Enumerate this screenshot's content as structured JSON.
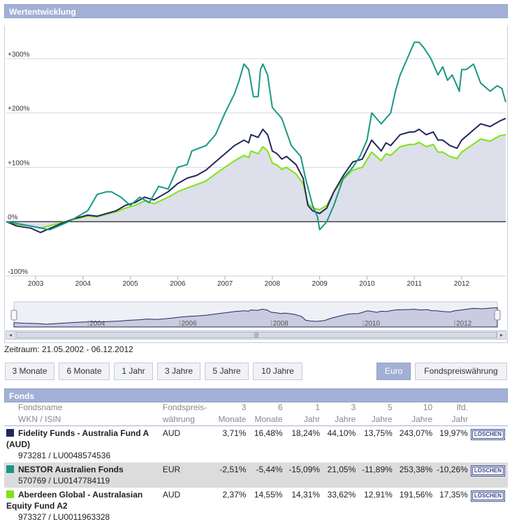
{
  "header": {
    "title": "Wertentwicklung"
  },
  "chart_data": {
    "type": "line",
    "title": "Wertentwicklung",
    "ylim": [
      -100,
      350
    ],
    "y_ticks": [
      -100,
      0,
      100,
      200,
      300
    ],
    "y_tick_labels": [
      "-100%",
      "0%",
      "+100%",
      "+200%",
      "+300%"
    ],
    "xlim": [
      2002.38,
      2012.93
    ],
    "x_ticks": [
      2003,
      2004,
      2005,
      2006,
      2007,
      2008,
      2009,
      2010,
      2011,
      2012
    ],
    "x_tick_labels": [
      "2003",
      "2004",
      "2005",
      "2006",
      "2007",
      "2008",
      "2009",
      "2010",
      "2011",
      "2012"
    ],
    "series": [
      {
        "name": "Fidelity Funds - Australia Fund A (AUD)",
        "color": "#22275e",
        "x": [
          2002.38,
          2002.6,
          2002.9,
          2003.1,
          2003.5,
          2003.8,
          2004.1,
          2004.3,
          2004.7,
          2004.9,
          2005.1,
          2005.3,
          2005.5,
          2005.8,
          2006.0,
          2006.2,
          2006.4,
          2006.6,
          2006.8,
          2007.0,
          2007.2,
          2007.4,
          2007.5,
          2007.55,
          2007.7,
          2007.8,
          2007.9,
          2008.0,
          2008.1,
          2008.2,
          2008.3,
          2008.5,
          2008.65,
          2008.75,
          2008.85,
          2009.0,
          2009.15,
          2009.3,
          2009.5,
          2009.7,
          2009.9,
          2010.1,
          2010.3,
          2010.4,
          2010.5,
          2010.7,
          2010.9,
          2011.0,
          2011.1,
          2011.25,
          2011.4,
          2011.5,
          2011.6,
          2011.75,
          2011.9,
          2012.0,
          2012.2,
          2012.4,
          2012.6,
          2012.8,
          2012.93
        ],
        "values": [
          0,
          -8,
          -12,
          -20,
          -5,
          5,
          12,
          10,
          20,
          30,
          35,
          45,
          40,
          55,
          70,
          80,
          85,
          95,
          110,
          125,
          140,
          150,
          145,
          160,
          155,
          170,
          160,
          130,
          125,
          115,
          120,
          105,
          80,
          30,
          20,
          15,
          25,
          55,
          85,
          110,
          115,
          150,
          130,
          145,
          140,
          160,
          165,
          165,
          170,
          160,
          165,
          150,
          150,
          140,
          135,
          150,
          165,
          180,
          175,
          185,
          190
        ]
      },
      {
        "name": "NESTOR Australien Fonds",
        "color": "#179884",
        "x": [
          2002.38,
          2002.7,
          2003.0,
          2003.3,
          2003.7,
          2003.9,
          2004.1,
          2004.3,
          2004.5,
          2004.6,
          2004.8,
          2005.0,
          2005.2,
          2005.4,
          2005.6,
          2005.8,
          2006.0,
          2006.2,
          2006.3,
          2006.6,
          2006.8,
          2007.0,
          2007.2,
          2007.3,
          2007.4,
          2007.5,
          2007.6,
          2007.7,
          2007.75,
          2007.8,
          2007.9,
          2008.0,
          2008.2,
          2008.4,
          2008.6,
          2008.7,
          2008.85,
          2008.95,
          2009.0,
          2009.15,
          2009.3,
          2009.5,
          2009.7,
          2009.85,
          2010.0,
          2010.1,
          2010.3,
          2010.5,
          2010.6,
          2010.7,
          2010.9,
          2011.0,
          2011.1,
          2011.2,
          2011.35,
          2011.5,
          2011.6,
          2011.7,
          2011.8,
          2011.95,
          2012.0,
          2012.1,
          2012.25,
          2012.4,
          2012.6,
          2012.75,
          2012.85,
          2012.93
        ],
        "values": [
          0,
          -5,
          -10,
          -15,
          0,
          10,
          20,
          50,
          55,
          55,
          45,
          30,
          45,
          35,
          65,
          60,
          100,
          105,
          130,
          140,
          160,
          200,
          235,
          260,
          290,
          280,
          230,
          230,
          280,
          290,
          270,
          210,
          190,
          140,
          120,
          80,
          30,
          10,
          -15,
          0,
          30,
          80,
          100,
          120,
          150,
          200,
          180,
          200,
          240,
          270,
          310,
          330,
          330,
          320,
          300,
          270,
          285,
          260,
          270,
          240,
          280,
          280,
          290,
          255,
          240,
          250,
          245,
          220
        ]
      },
      {
        "name": "Aberdeen Global - Australasian Equity Fund A2",
        "color": "#7ee314",
        "area": true,
        "x": [
          2002.38,
          2002.6,
          2002.9,
          2003.1,
          2003.5,
          2003.8,
          2004.1,
          2004.3,
          2004.7,
          2004.9,
          2005.1,
          2005.3,
          2005.5,
          2005.8,
          2006.0,
          2006.2,
          2006.4,
          2006.6,
          2006.8,
          2007.0,
          2007.2,
          2007.4,
          2007.5,
          2007.55,
          2007.7,
          2007.8,
          2007.9,
          2008.0,
          2008.1,
          2008.2,
          2008.3,
          2008.5,
          2008.65,
          2008.75,
          2008.85,
          2009.0,
          2009.15,
          2009.3,
          2009.5,
          2009.7,
          2009.9,
          2010.1,
          2010.3,
          2010.4,
          2010.5,
          2010.7,
          2010.9,
          2011.0,
          2011.1,
          2011.25,
          2011.4,
          2011.5,
          2011.6,
          2011.75,
          2011.9,
          2012.0,
          2012.2,
          2012.4,
          2012.6,
          2012.8,
          2012.93
        ],
        "values": [
          0,
          -5,
          -8,
          -12,
          -3,
          4,
          10,
          9,
          18,
          25,
          30,
          38,
          33,
          45,
          55,
          62,
          68,
          75,
          88,
          100,
          112,
          122,
          118,
          130,
          125,
          138,
          130,
          108,
          104,
          96,
          100,
          88,
          70,
          35,
          25,
          22,
          30,
          55,
          78,
          95,
          100,
          128,
          112,
          125,
          122,
          138,
          142,
          142,
          146,
          138,
          142,
          128,
          128,
          120,
          116,
          128,
          140,
          152,
          148,
          158,
          160
        ]
      }
    ],
    "navigator": {
      "x_tick_labels": [
        "2004",
        "2006",
        "2008",
        "2010",
        "2012"
      ],
      "x_ticks": [
        2004,
        2006,
        2008,
        2010,
        2012
      ]
    }
  },
  "zeitraum": "Zeitraum: 21.05.2002 - 06.12.2012",
  "range_buttons": [
    {
      "label": "3 Monate"
    },
    {
      "label": "6 Monate"
    },
    {
      "label": "1 Jahr"
    },
    {
      "label": "3 Jahre"
    },
    {
      "label": "5 Jahre"
    },
    {
      "label": "10 Jahre"
    }
  ],
  "currency_buttons": {
    "euro": "Euro",
    "fund": "Fondspreiswährung"
  },
  "fonds": {
    "title": "Fonds",
    "columns": {
      "name1": "Fondsname",
      "name2": "WKN / ISIN",
      "cur1": "Fondspreis-",
      "cur2": "währung",
      "m3a": "3",
      "m3b": "Monate",
      "m6a": "6",
      "m6b": "Monate",
      "y1a": "1",
      "y1b": "Jahr",
      "y3a": "3",
      "y3b": "Jahre",
      "y5a": "5",
      "y5b": "Jahre",
      "y10a": "10",
      "y10b": "Jahre",
      "lfda": "lfd.",
      "lfdb": "Jahr"
    },
    "rows": [
      {
        "color": "#22275e",
        "name": "Fidelity Funds - Australia Fund A (AUD)",
        "ids": "973281 / LU0048574536",
        "currency": "AUD",
        "m3": "3,71%",
        "m6": "16,48%",
        "y1": "18,24%",
        "y3": "44,10%",
        "y5": "13,75%",
        "y10": "243,07%",
        "lfd": "19,97%",
        "delete": "LÖSCHEN"
      },
      {
        "color": "#179884",
        "name": "NESTOR Australien Fonds",
        "ids": "570769 / LU0147784119",
        "currency": "EUR",
        "m3": "-2,51%",
        "m6": "-5,44%",
        "y1": "-15,09%",
        "y3": "21,05%",
        "y5": "-11,89%",
        "y10": "253,38%",
        "lfd": "-10,26%",
        "delete": "LÖSCHEN"
      },
      {
        "color": "#7ee314",
        "name": "Aberdeen Global - Australasian Equity Fund A2",
        "ids": "973327 / LU0011963328",
        "currency": "AUD",
        "m3": "2,37%",
        "m6": "14,55%",
        "y1": "14,31%",
        "y3": "33,62%",
        "y5": "12,91%",
        "y10": "191,56%",
        "lfd": "17,35%",
        "delete": "LÖSCHEN"
      }
    ]
  }
}
